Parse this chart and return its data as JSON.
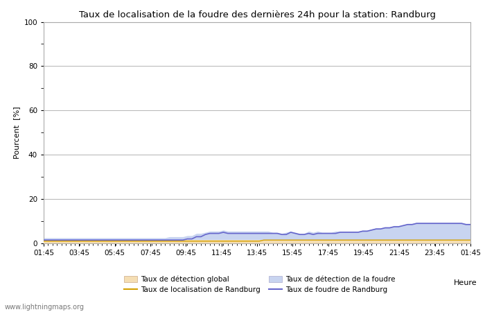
{
  "title": "Taux de localisation de la foudre des dernières 24h pour la station: Randburg",
  "ylabel": "Pourcent  [%]",
  "xlabel": "Heure",
  "xlim_labels": [
    "01:45",
    "03:45",
    "05:45",
    "07:45",
    "09:45",
    "11:45",
    "13:45",
    "15:45",
    "17:45",
    "19:45",
    "21:45",
    "23:45",
    "01:45"
  ],
  "ylim": [
    0,
    100
  ],
  "yticks": [
    0,
    20,
    40,
    60,
    80,
    100
  ],
  "ytick_minor": [
    10,
    30,
    50,
    70,
    90
  ],
  "background_color": "#ffffff",
  "plot_bg_color": "#ffffff",
  "grid_color": "#bbbbbb",
  "watermark": "www.lightningmaps.org",
  "legend": [
    {
      "label": "Taux de détection global",
      "type": "fill",
      "color": "#f5deb3"
    },
    {
      "label": "Taux de localisation de Randburg",
      "type": "line",
      "color": "#d4a000"
    },
    {
      "label": "Taux de détection de la foudre",
      "type": "fill",
      "color": "#c8d4f0"
    },
    {
      "label": "Taux de foudre de Randburg",
      "type": "line",
      "color": "#6666cc"
    }
  ],
  "detection_global": [
    1.5,
    1.5,
    1.5,
    1.5,
    1.5,
    1.5,
    1.5,
    1.5,
    1.5,
    1.5,
    1.5,
    1.5,
    1.5,
    1.5,
    1.5,
    1.5,
    1.5,
    1.5,
    1.5,
    1.5,
    1.5,
    1.5,
    1.5,
    1.5,
    1.5,
    1.5,
    1.5,
    1.5,
    1.5,
    1.5,
    1.5,
    1.5,
    1.5,
    1.5,
    1.5,
    1.5,
    1.5,
    1.5,
    1.5,
    1.5,
    1.5,
    1.5,
    1.5,
    1.5,
    1.5,
    1.5,
    1.5,
    1.5,
    1.5,
    1.5,
    1.5,
    1.5,
    1.5,
    1.5,
    1.5,
    1.5,
    1.5,
    1.5,
    1.5,
    1.5,
    1.5,
    1.5,
    1.5,
    1.5,
    1.5,
    1.5,
    1.5,
    1.5,
    1.5,
    1.5,
    1.5,
    1.5,
    1.5,
    1.5,
    1.5,
    1.5,
    1.5,
    1.5,
    1.5,
    1.5,
    1.5,
    1.5,
    1.5,
    1.5,
    1.5,
    1.5,
    1.5,
    1.5,
    1.5,
    1.5,
    1.5,
    1.5,
    1.5,
    1.5,
    1.5,
    1.5
  ],
  "detection_foudre": [
    2.5,
    2.5,
    2.5,
    2.5,
    2.5,
    2.5,
    2.5,
    2.5,
    2.5,
    2.5,
    2.5,
    2.5,
    2.5,
    2.5,
    2.5,
    2.5,
    2.5,
    2.5,
    2.5,
    2.5,
    2.5,
    2.5,
    2.5,
    2.5,
    2.5,
    2.5,
    2.5,
    2.5,
    3.0,
    3.0,
    3.0,
    3.0,
    3.5,
    3.5,
    4.5,
    4.5,
    5.0,
    5.5,
    5.5,
    5.5,
    6.0,
    5.5,
    5.5,
    5.5,
    5.5,
    5.5,
    5.5,
    5.5,
    5.5,
    5.5,
    5.5,
    5.0,
    5.0,
    4.5,
    5.0,
    5.5,
    5.0,
    4.5,
    4.5,
    5.5,
    5.0,
    5.5,
    5.0,
    5.0,
    5.0,
    5.5,
    5.5,
    5.5,
    5.5,
    5.5,
    5.5,
    6.0,
    6.0,
    6.5,
    7.0,
    7.0,
    7.5,
    7.5,
    8.0,
    8.0,
    8.5,
    9.0,
    9.0,
    9.5,
    9.5,
    9.5,
    9.5,
    9.5,
    9.5,
    9.5,
    9.5,
    9.5,
    9.5,
    9.5,
    9.0,
    9.0
  ],
  "localisation_randburg": [
    1.0,
    1.0,
    1.0,
    1.0,
    1.0,
    1.0,
    1.0,
    1.0,
    1.0,
    1.0,
    1.0,
    1.0,
    1.0,
    1.0,
    1.0,
    1.0,
    1.0,
    1.0,
    1.0,
    1.0,
    1.0,
    1.0,
    1.0,
    1.0,
    1.0,
    1.0,
    1.0,
    1.0,
    1.0,
    1.0,
    1.0,
    1.0,
    1.0,
    1.0,
    1.0,
    1.0,
    1.0,
    1.0,
    1.0,
    1.0,
    1.0,
    1.0,
    1.0,
    1.0,
    1.0,
    1.0,
    1.0,
    1.0,
    1.0,
    1.5,
    1.5,
    1.5,
    1.5,
    1.5,
    1.5,
    1.5,
    1.5,
    1.5,
    1.5,
    1.5,
    1.5,
    1.5,
    1.5,
    1.5,
    1.5,
    1.5,
    1.5,
    1.5,
    1.5,
    1.5,
    1.5,
    1.5,
    1.5,
    1.5,
    1.5,
    1.5,
    1.5,
    1.5,
    1.5,
    1.5,
    1.5,
    1.5,
    1.5,
    1.5,
    1.5,
    1.5,
    1.5,
    1.5,
    1.5,
    1.5,
    1.5,
    1.5,
    1.5,
    1.5,
    1.5,
    1.5
  ],
  "foudre_randburg": [
    1.5,
    1.5,
    1.5,
    1.5,
    1.5,
    1.5,
    1.5,
    1.5,
    1.5,
    1.5,
    1.5,
    1.5,
    1.5,
    1.5,
    1.5,
    1.5,
    1.5,
    1.5,
    1.5,
    1.5,
    1.5,
    1.5,
    1.5,
    1.5,
    1.5,
    1.5,
    1.5,
    1.5,
    1.5,
    1.5,
    1.5,
    1.5,
    2.0,
    2.0,
    3.0,
    3.0,
    4.0,
    4.5,
    4.5,
    4.5,
    5.0,
    4.5,
    4.5,
    4.5,
    4.5,
    4.5,
    4.5,
    4.5,
    4.5,
    4.5,
    4.5,
    4.5,
    4.5,
    4.0,
    4.0,
    5.0,
    4.5,
    4.0,
    4.0,
    4.5,
    4.0,
    4.5,
    4.5,
    4.5,
    4.5,
    4.5,
    5.0,
    5.0,
    5.0,
    5.0,
    5.0,
    5.5,
    5.5,
    6.0,
    6.5,
    6.5,
    7.0,
    7.0,
    7.5,
    7.5,
    8.0,
    8.5,
    8.5,
    9.0,
    9.0,
    9.0,
    9.0,
    9.0,
    9.0,
    9.0,
    9.0,
    9.0,
    9.0,
    9.0,
    8.5,
    8.5
  ]
}
